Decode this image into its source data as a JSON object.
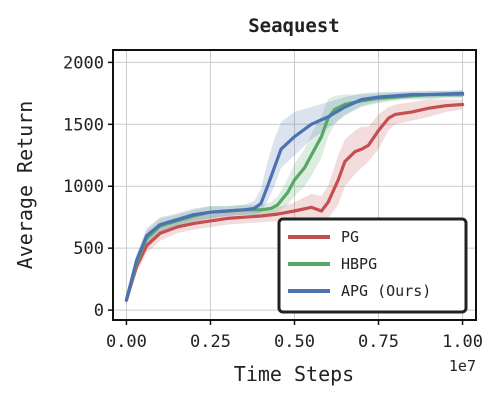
{
  "chart_data": {
    "type": "line",
    "title": "Seaquest",
    "xlabel": "Time Steps",
    "ylabel": "Average Return",
    "x_offset_label": "1e7",
    "xlim": [
      -0.04,
      1.04
    ],
    "ylim": [
      -80,
      2100
    ],
    "xticks": [
      0.0,
      0.25,
      0.5,
      0.75,
      1.0
    ],
    "xtick_labels": [
      "0.00",
      "0.25",
      "0.50",
      "0.75",
      "1.00"
    ],
    "yticks": [
      0,
      500,
      1000,
      1500,
      2000
    ],
    "ytick_labels": [
      "0",
      "500",
      "1000",
      "1500",
      "2000"
    ],
    "grid": true,
    "legend_position": "bottom-right",
    "series": [
      {
        "name": "PG",
        "color": "#c44e52",
        "x": [
          0.0,
          0.03,
          0.06,
          0.1,
          0.15,
          0.2,
          0.25,
          0.3,
          0.35,
          0.4,
          0.45,
          0.48,
          0.5,
          0.55,
          0.58,
          0.6,
          0.63,
          0.65,
          0.68,
          0.7,
          0.72,
          0.75,
          0.78,
          0.8,
          0.85,
          0.9,
          0.95,
          1.0
        ],
        "y": [
          80,
          350,
          520,
          620,
          670,
          700,
          720,
          740,
          750,
          760,
          775,
          790,
          800,
          830,
          800,
          870,
          1050,
          1200,
          1280,
          1300,
          1330,
          1450,
          1550,
          1580,
          1600,
          1630,
          1650,
          1660
        ],
        "lower": [
          60,
          300,
          460,
          560,
          620,
          650,
          670,
          690,
          700,
          710,
          720,
          730,
          740,
          740,
          700,
          740,
          850,
          1000,
          1100,
          1150,
          1200,
          1300,
          1450,
          1500,
          1530,
          1560,
          1600,
          1620
        ],
        "upper": [
          100,
          400,
          580,
          680,
          720,
          750,
          770,
          790,
          800,
          810,
          830,
          850,
          870,
          940,
          920,
          1000,
          1250,
          1380,
          1450,
          1480,
          1480,
          1580,
          1640,
          1660,
          1680,
          1700,
          1700,
          1700
        ]
      },
      {
        "name": "HBPG",
        "color": "#55a868",
        "x": [
          0.0,
          0.03,
          0.06,
          0.1,
          0.15,
          0.2,
          0.25,
          0.3,
          0.35,
          0.4,
          0.43,
          0.45,
          0.48,
          0.5,
          0.53,
          0.55,
          0.58,
          0.6,
          0.62,
          0.65,
          0.7,
          0.75,
          0.8,
          0.85,
          0.9,
          0.95,
          1.0
        ],
        "y": [
          80,
          380,
          580,
          680,
          720,
          760,
          790,
          800,
          810,
          810,
          820,
          850,
          950,
          1050,
          1150,
          1250,
          1400,
          1550,
          1620,
          1660,
          1690,
          1710,
          1720,
          1730,
          1740,
          1740,
          1740
        ],
        "lower": [
          60,
          330,
          520,
          620,
          670,
          710,
          740,
          760,
          770,
          770,
          770,
          790,
          850,
          920,
          1000,
          1080,
          1230,
          1400,
          1500,
          1580,
          1640,
          1670,
          1690,
          1700,
          1700,
          1710,
          1710
        ],
        "upper": [
          100,
          430,
          640,
          740,
          770,
          810,
          840,
          840,
          850,
          850,
          870,
          920,
          1060,
          1180,
          1300,
          1420,
          1570,
          1700,
          1730,
          1740,
          1740,
          1750,
          1760,
          1760,
          1770,
          1770,
          1770
        ]
      },
      {
        "name": "APG (Ours)",
        "color": "#4c72b0",
        "x": [
          0.0,
          0.03,
          0.06,
          0.1,
          0.15,
          0.2,
          0.25,
          0.3,
          0.35,
          0.38,
          0.4,
          0.42,
          0.44,
          0.46,
          0.5,
          0.55,
          0.6,
          0.65,
          0.7,
          0.75,
          0.8,
          0.85,
          0.9,
          0.95,
          1.0
        ],
        "y": [
          80,
          400,
          600,
          690,
          730,
          770,
          790,
          800,
          810,
          820,
          860,
          1000,
          1150,
          1300,
          1400,
          1500,
          1560,
          1640,
          1700,
          1720,
          1730,
          1740,
          1740,
          1745,
          1750
        ],
        "lower": [
          60,
          350,
          540,
          630,
          680,
          720,
          740,
          760,
          770,
          770,
          790,
          880,
          1000,
          1150,
          1250,
          1380,
          1470,
          1570,
          1650,
          1680,
          1700,
          1710,
          1710,
          1720,
          1720
        ],
        "upper": [
          100,
          450,
          660,
          750,
          780,
          820,
          840,
          840,
          850,
          880,
          980,
          1200,
          1380,
          1520,
          1600,
          1640,
          1680,
          1720,
          1750,
          1760,
          1760,
          1770,
          1770,
          1770,
          1780
        ]
      }
    ]
  }
}
